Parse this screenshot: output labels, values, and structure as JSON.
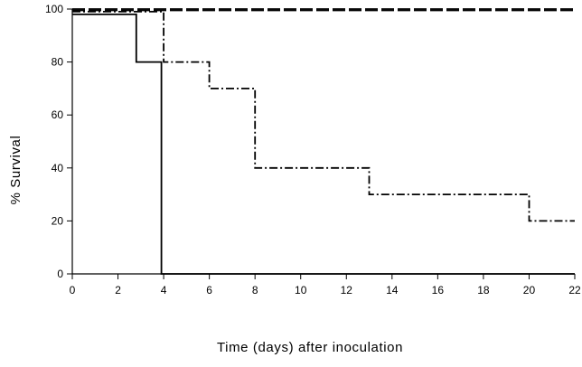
{
  "chart_data": {
    "type": "line",
    "title": "",
    "xlabel": "Time (days) after inoculation",
    "ylabel": "% Survival",
    "xlim": [
      0,
      22
    ],
    "ylim": [
      0,
      100
    ],
    "xticks": [
      "0",
      "2",
      "4",
      "6",
      "8",
      "10",
      "12",
      "14",
      "16",
      "18",
      "20",
      "22"
    ],
    "yticks": [
      "0",
      "20",
      "40",
      "60",
      "80",
      "100"
    ],
    "grid": false,
    "legend": "none",
    "series": [
      {
        "style": "solid",
        "step": true,
        "x": [
          0,
          2.8,
          2.8,
          3.9,
          3.9,
          22
        ],
        "y": [
          98,
          98,
          80,
          80,
          0,
          0
        ]
      },
      {
        "style": "long-dash",
        "step": true,
        "x": [
          0,
          22
        ],
        "y": [
          100,
          100
        ]
      },
      {
        "style": "long-dash",
        "step": true,
        "x": [
          0,
          22
        ],
        "y": [
          99.5,
          99.5
        ]
      },
      {
        "style": "dash-dot",
        "step": true,
        "x": [
          0,
          4,
          4,
          6,
          6,
          8,
          8,
          13,
          13,
          20,
          20,
          22
        ],
        "y": [
          99,
          99,
          80,
          80,
          70,
          70,
          40,
          40,
          30,
          30,
          20,
          20
        ]
      }
    ]
  }
}
